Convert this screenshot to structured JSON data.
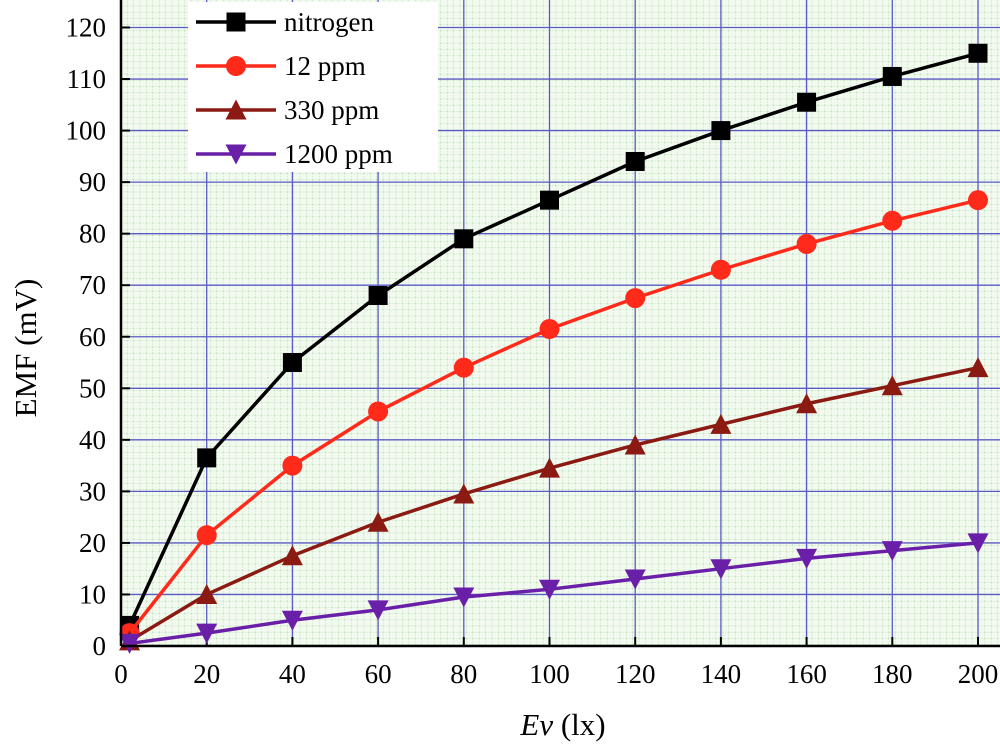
{
  "chart_data": {
    "type": "line",
    "xlabel_var": "Ev",
    "xlabel_unit": " (lx)",
    "ylabel": "EMF (mV)",
    "xlim": [
      0,
      200
    ],
    "ylim": [
      0,
      125
    ],
    "xticks": [
      0,
      20,
      40,
      60,
      80,
      100,
      120,
      140,
      160,
      180,
      200
    ],
    "yticks": [
      0,
      10,
      20,
      30,
      40,
      50,
      60,
      70,
      80,
      90,
      100,
      110,
      120
    ],
    "grid": true,
    "legend_position": "top-left",
    "x": [
      2,
      20,
      40,
      60,
      80,
      100,
      120,
      140,
      160,
      180,
      200
    ],
    "series": [
      {
        "name": "nitrogen",
        "color": "#000000",
        "marker": "square",
        "values": [
          4,
          36.5,
          55,
          68,
          79,
          86.5,
          94,
          100,
          105.5,
          110.5,
          115
        ]
      },
      {
        "name": "12 ppm",
        "color": "#ff2a1a",
        "marker": "circle",
        "values": [
          2.5,
          21.5,
          35,
          45.5,
          54,
          61.5,
          67.5,
          73,
          78,
          82.5,
          86.5
        ]
      },
      {
        "name": "330 ppm",
        "color": "#8b1a12",
        "marker": "triangle-up",
        "values": [
          1,
          10,
          17.5,
          24,
          29.5,
          34.5,
          39,
          43,
          47,
          50.5,
          54
        ]
      },
      {
        "name": "1200 ppm",
        "color": "#6a1fa8",
        "marker": "triangle-down",
        "values": [
          0.5,
          2.5,
          5,
          7,
          9.5,
          11,
          13,
          15,
          17,
          18.5,
          20
        ]
      }
    ]
  }
}
